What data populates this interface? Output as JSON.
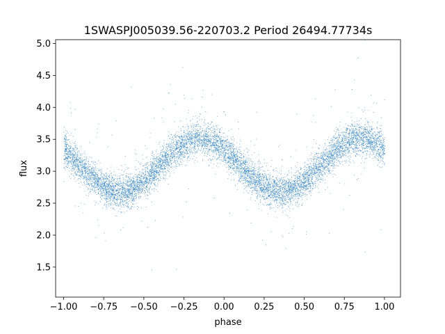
{
  "chart_data": {
    "type": "scatter",
    "title": "1SWASPJ005039.56-220703.2 Period 26494.77734s",
    "xlabel": "phase",
    "ylabel": "flux",
    "xlim": [
      -1.05,
      1.1
    ],
    "ylim": [
      1.03,
      5.06
    ],
    "x_ticks": [
      -1.0,
      -0.75,
      -0.5,
      -0.25,
      0.0,
      0.25,
      0.5,
      0.75,
      1.0
    ],
    "x_tick_labels": [
      "−1.00",
      "−0.75",
      "−0.50",
      "−0.25",
      "0.00",
      "0.25",
      "0.50",
      "0.75",
      "1.00"
    ],
    "y_ticks": [
      1.5,
      2.0,
      2.5,
      3.0,
      3.5,
      4.0,
      4.5,
      5.0
    ],
    "y_tick_labels": [
      "1.5",
      "2.0",
      "2.5",
      "3.0",
      "3.5",
      "4.0",
      "4.5",
      "5.0"
    ],
    "grid": false,
    "color": "#1f77b4",
    "series": [
      {
        "phase_range": [
          -1.0,
          1.0
        ],
        "model": {
          "mean_flux": 3.1,
          "amplitude": 0.42,
          "cycles_per_unit_phase": 1,
          "peak_phase": [
            -0.15,
            0.85
          ],
          "trough_phase": [
            -0.58,
            0.42
          ],
          "scatter_sigma": 0.13
        }
      }
    ]
  }
}
